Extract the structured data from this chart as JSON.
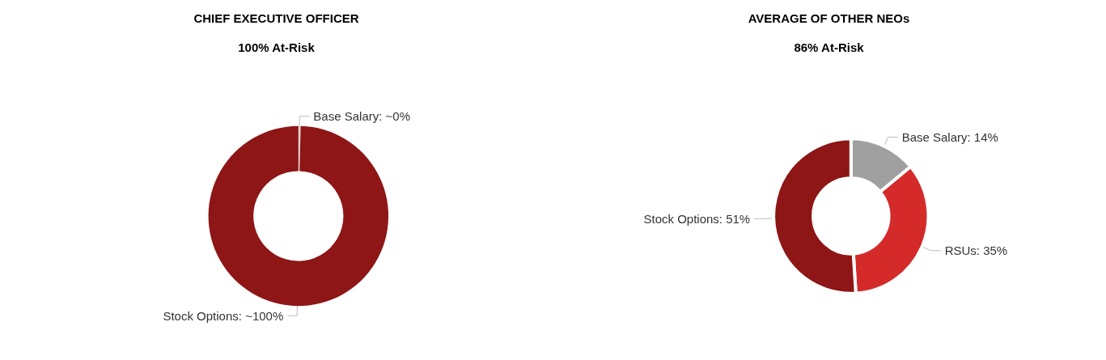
{
  "chart_data": [
    {
      "type": "donut",
      "title": "CHIEF EXECUTIVE OFFICER",
      "subtitle": "100% At-Risk",
      "categories": [
        "Base Salary",
        "Stock Options"
      ],
      "values": [
        0.4,
        99.6
      ],
      "colors": [
        "#f4d6d6",
        "#8e1616"
      ],
      "value_labels": [
        "~0%",
        "~100%"
      ]
    },
    {
      "type": "donut",
      "title": "AVERAGE OF OTHER NEOs",
      "subtitle": "86% At-Risk",
      "categories": [
        "Base Salary",
        "RSUs",
        "Stock Options"
      ],
      "values": [
        14,
        35,
        51
      ],
      "colors": [
        "#a0a0a0",
        "#d42a2a",
        "#8e1616"
      ],
      "value_labels": [
        "14%",
        "35%",
        "51%"
      ]
    }
  ]
}
